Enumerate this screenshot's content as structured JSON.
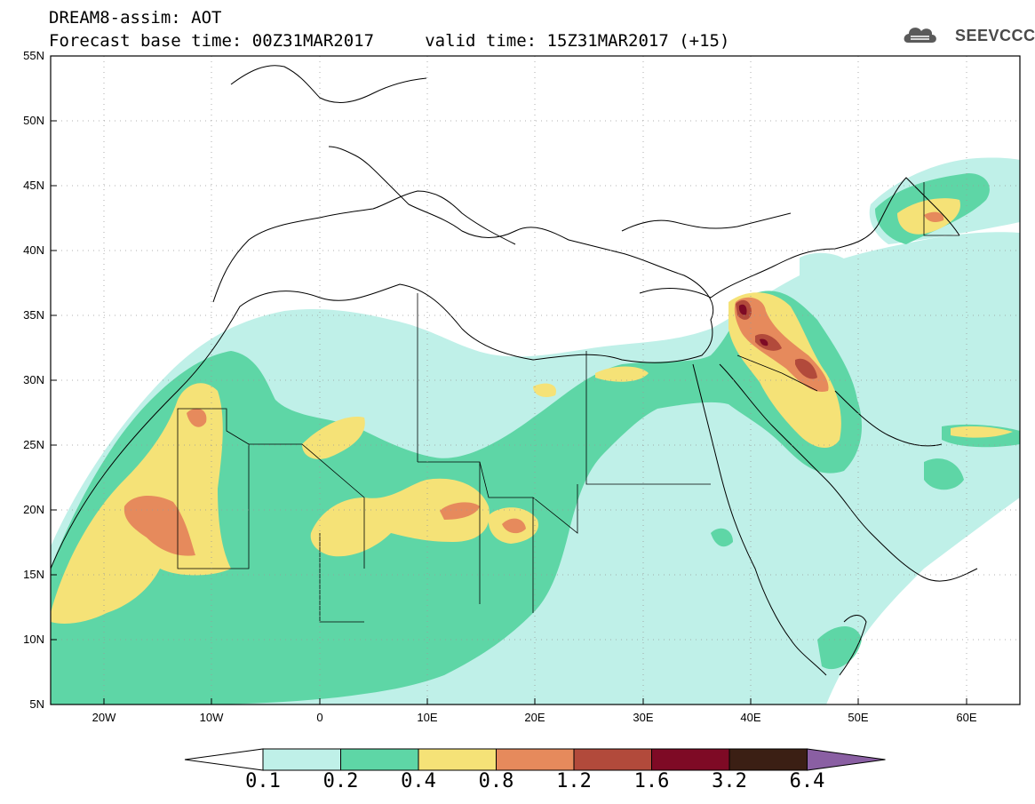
{
  "title": {
    "line1": "DREAM8-assim: AOT",
    "line2": "Forecast base time: 00Z31MAR2017     valid time: 15Z31MAR2017 (+15)"
  },
  "logo": {
    "text": "SEEVCCC",
    "icon": "cloud-icon",
    "color": "#4a4a4a"
  },
  "map": {
    "lat_labels": [
      "55N",
      "50N",
      "45N",
      "40N",
      "35N",
      "30N",
      "25N",
      "20N",
      "15N",
      "10N",
      "5N"
    ],
    "lon_labels": [
      "20W",
      "10W",
      "0",
      "10E",
      "20E",
      "30E",
      "40E",
      "50E",
      "60E"
    ],
    "lat_range": [
      5,
      55
    ],
    "lon_range": [
      -25,
      65
    ],
    "gridlines": "dotted"
  },
  "legend": {
    "labels": [
      "0.1",
      "0.2",
      "0.4",
      "0.8",
      "1.2",
      "1.6",
      "3.2",
      "6.4"
    ],
    "colors": [
      "#ffffff",
      "#bff0e8",
      "#5ed6a6",
      "#f5e277",
      "#e68a5c",
      "#b24a3b",
      "#7e0a25",
      "#3b1f14",
      "#8a5fa3"
    ]
  }
}
